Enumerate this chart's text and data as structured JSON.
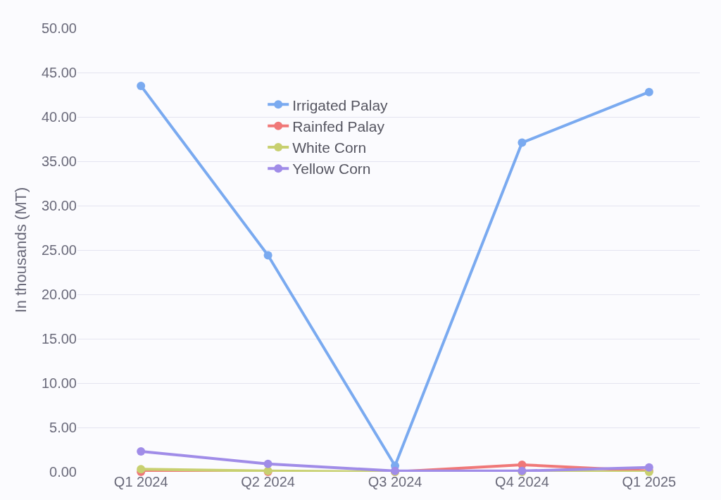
{
  "chart_data": {
    "type": "line",
    "ylabel": "In thousands (MT)",
    "categories": [
      "Q1 2024",
      "Q2 2024",
      "Q3 2024",
      "Q4 2024",
      "Q1 2025"
    ],
    "series": [
      {
        "name": "Irrigated Palay",
        "color": "#7aaaf0",
        "values": [
          43.5,
          24.4,
          0.7,
          37.1,
          42.8
        ]
      },
      {
        "name": "Rainfed Palay",
        "color": "#f07878",
        "values": [
          0.0,
          0.0,
          0.0,
          0.8,
          0.1
        ]
      },
      {
        "name": "White Corn",
        "color": "#c8d070",
        "values": [
          0.3,
          0.1,
          0.0,
          0.0,
          0.0
        ]
      },
      {
        "name": "Yellow Corn",
        "color": "#a08ce8",
        "values": [
          2.3,
          0.9,
          0.1,
          0.1,
          0.5
        ]
      }
    ],
    "ylim": [
      0,
      50
    ],
    "yticks": [
      {
        "value": 0,
        "label": "0.00"
      },
      {
        "value": 5,
        "label": "5.00"
      },
      {
        "value": 10,
        "label": "10.00"
      },
      {
        "value": 15,
        "label": "15.00"
      },
      {
        "value": 20,
        "label": "20.00"
      },
      {
        "value": 25,
        "label": "25.00"
      },
      {
        "value": 30,
        "label": "30.00"
      },
      {
        "value": 35,
        "label": "35.00"
      },
      {
        "value": 40,
        "label": "40.00"
      },
      {
        "value": 45,
        "label": "45.00"
      },
      {
        "value": 50,
        "label": "50.00"
      }
    ],
    "grid": "y",
    "legend": "top",
    "marker": "circle",
    "line_style": "solid"
  }
}
